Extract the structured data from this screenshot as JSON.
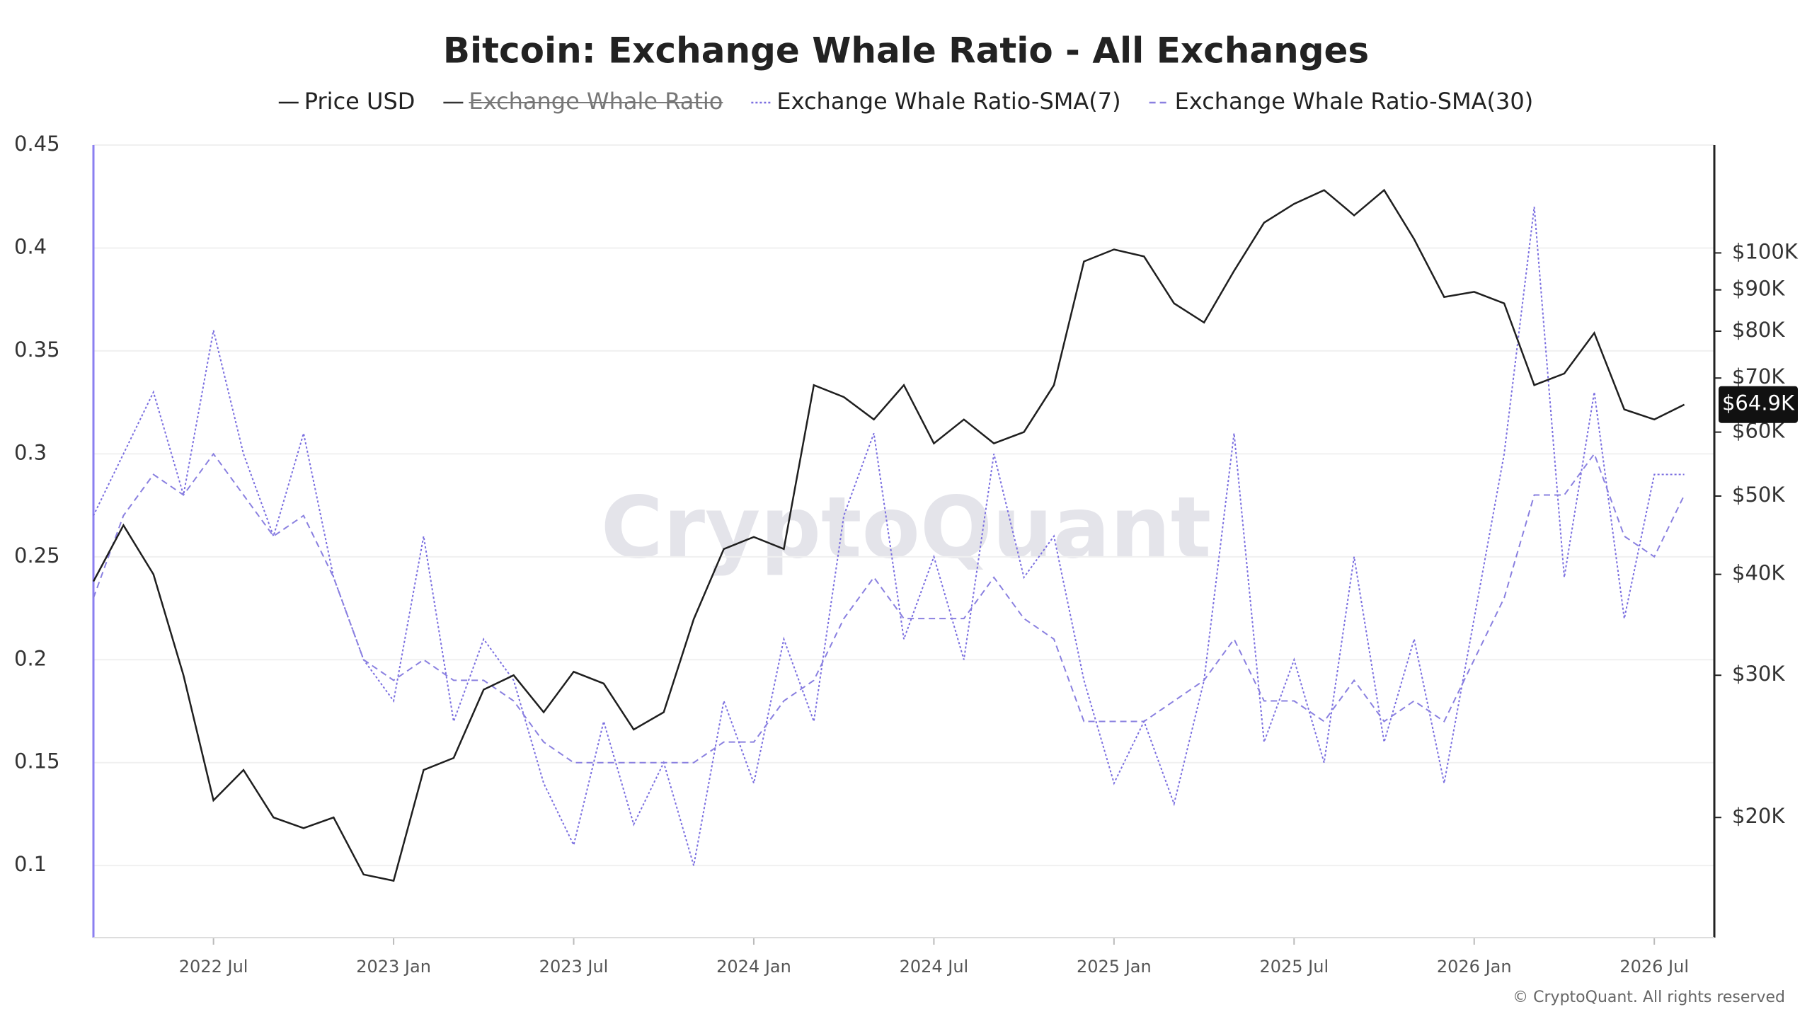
{
  "chart_data": {
    "type": "line",
    "title": "Bitcoin: Exchange Whale Ratio - All Exchanges",
    "watermark": "CryptoQuant",
    "footer": "© CryptoQuant. All rights reserved",
    "x": [
      "2022-03",
      "2022-04",
      "2022-05",
      "2022-06",
      "2022-07",
      "2022-08",
      "2022-09",
      "2022-10",
      "2022-11",
      "2022-12",
      "2023-01",
      "2023-02",
      "2023-03",
      "2023-04",
      "2023-05",
      "2023-06",
      "2023-07",
      "2023-08",
      "2023-09",
      "2023-10",
      "2023-11",
      "2023-12",
      "2024-01",
      "2024-02",
      "2024-03",
      "2024-04",
      "2024-05",
      "2024-06",
      "2024-07",
      "2024-08",
      "2024-09",
      "2024-10",
      "2024-11",
      "2024-12",
      "2025-01",
      "2025-02",
      "2025-03",
      "2025-04",
      "2025-05",
      "2025-06",
      "2025-07",
      "2025-08",
      "2025-09",
      "2025-10",
      "2025-11",
      "2025-12",
      "2026-01",
      "2026-02",
      "2026-03",
      "2026-04",
      "2026-05",
      "2026-06",
      "2026-07",
      "2026-08"
    ],
    "xlim": [
      "2022-03",
      "2026-09"
    ],
    "xticks": [
      {
        "value": "2022-07",
        "label": "2022 Jul"
      },
      {
        "value": "2023-01",
        "label": "2023 Jan"
      },
      {
        "value": "2023-07",
        "label": "2023 Jul"
      },
      {
        "value": "2024-01",
        "label": "2024 Jan"
      },
      {
        "value": "2024-07",
        "label": "2024 Jul"
      },
      {
        "value": "2025-01",
        "label": "2025 Jan"
      },
      {
        "value": "2025-07",
        "label": "2025 Jul"
      },
      {
        "value": "2026-01",
        "label": "2026 Jan"
      },
      {
        "value": "2026-07",
        "label": "2026 Jul"
      }
    ],
    "ylim": [
      0.065,
      0.45
    ],
    "yticks": [
      0.1,
      0.15,
      0.2,
      0.25,
      0.3,
      0.35,
      0.4,
      0.45
    ],
    "y2lim": [
      14200,
      136000
    ],
    "y2_log_scale": true,
    "y2ticks": [
      {
        "value": 20000,
        "label": "$20K"
      },
      {
        "value": 30000,
        "label": "$30K"
      },
      {
        "value": 40000,
        "label": "$40K"
      },
      {
        "value": 50000,
        "label": "$50K"
      },
      {
        "value": 60000,
        "label": "$60K"
      },
      {
        "value": 70000,
        "label": "$70K"
      },
      {
        "value": 80000,
        "label": "$80K"
      },
      {
        "value": 90000,
        "label": "$90K"
      },
      {
        "value": 100000,
        "label": "$100K"
      }
    ],
    "last_value_label": {
      "value": 64900,
      "label": "$64.9K"
    },
    "grid": true,
    "series": [
      {
        "name": "Price USD",
        "color": "#1f1f1f",
        "axis": "y2",
        "style": "solid",
        "values": [
          39200,
          46000,
          40000,
          30000,
          21000,
          22900,
          20000,
          19400,
          20000,
          17000,
          16700,
          22900,
          23700,
          28800,
          30000,
          27000,
          30300,
          29300,
          25700,
          27000,
          35200,
          43000,
          44500,
          43000,
          68600,
          66300,
          62200,
          68600,
          58100,
          62200,
          58100,
          60000,
          68600,
          97600,
          101000,
          99000,
          86600,
          82000,
          95000,
          109000,
          115000,
          119600,
          111300,
          119600,
          104000,
          88200,
          89500,
          86600,
          68600,
          70900,
          79600,
          64000,
          62200,
          64900
        ]
      },
      {
        "name": "Exchange Whale Ratio",
        "color": "#333333",
        "visible": false,
        "style": "solid"
      },
      {
        "name": "Exchange Whale Ratio-SMA(7)",
        "color": "#7b6fe0",
        "style": "dotted",
        "values": [
          0.27,
          0.3,
          0.33,
          0.28,
          0.36,
          0.3,
          0.26,
          0.31,
          0.24,
          0.2,
          0.18,
          0.26,
          0.17,
          0.21,
          0.19,
          0.14,
          0.11,
          0.17,
          0.12,
          0.15,
          0.1,
          0.18,
          0.14,
          0.21,
          0.17,
          0.27,
          0.31,
          0.21,
          0.25,
          0.2,
          0.3,
          0.24,
          0.26,
          0.19,
          0.14,
          0.17,
          0.13,
          0.19,
          0.31,
          0.16,
          0.2,
          0.15,
          0.25,
          0.16,
          0.21,
          0.14,
          0.22,
          0.3,
          0.42,
          0.24,
          0.33,
          0.22,
          0.29,
          0.29
        ]
      },
      {
        "name": "Exchange Whale Ratio-SMA(30)",
        "color": "#8a80e0",
        "style": "dashed",
        "values": [
          0.23,
          0.27,
          0.29,
          0.28,
          0.3,
          0.28,
          0.26,
          0.27,
          0.24,
          0.2,
          0.19,
          0.2,
          0.19,
          0.19,
          0.18,
          0.16,
          0.15,
          0.15,
          0.15,
          0.15,
          0.15,
          0.16,
          0.16,
          0.18,
          0.19,
          0.22,
          0.24,
          0.22,
          0.22,
          0.22,
          0.24,
          0.22,
          0.21,
          0.17,
          0.17,
          0.17,
          0.18,
          0.19,
          0.21,
          0.18,
          0.18,
          0.17,
          0.19,
          0.17,
          0.18,
          0.17,
          0.2,
          0.23,
          0.28,
          0.28,
          0.3,
          0.26,
          0.25,
          0.28
        ]
      }
    ]
  }
}
